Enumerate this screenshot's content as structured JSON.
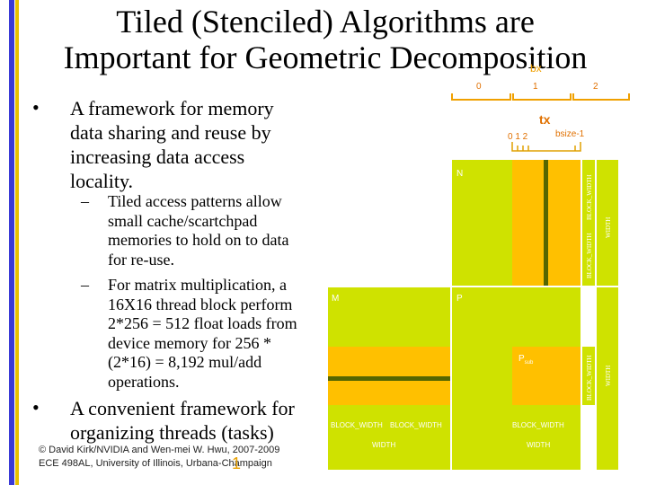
{
  "title": {
    "line1": "Tiled (Stenciled) Algorithms are",
    "line2": "Important for Geometric Decomposition"
  },
  "bullets": [
    {
      "marker": "•",
      "lines": [
        "A framework for memory",
        "data sharing and reuse by",
        "increasing data access",
        "locality."
      ]
    },
    {
      "marker": "•",
      "lines": [
        "A convenient framework for",
        "organizing threads (tasks)"
      ]
    }
  ],
  "subbullets": [
    {
      "marker": "–",
      "lines": [
        "Tiled access patterns allow",
        "small cache/scartchpad",
        "memories to hold on to data",
        "for re-use."
      ]
    },
    {
      "marker": "–",
      "lines": [
        "For matrix multiplication, a",
        "16X16 thread block perform",
        "2*256 = 512 float loads from",
        "device memory for 256 *",
        "(2*16) = 8,192 mul/add",
        "operations."
      ]
    }
  ],
  "footer": {
    "line1": "© David Kirk/NVIDIA and Wen-mei W. Hwu, 2007-2009",
    "line2": "ECE 498AL, University of Illinois, Urbana-Champaign"
  },
  "page_number": "1",
  "diagram": {
    "bx_label": "bx",
    "bx_ticks": [
      "0",
      "1",
      "2"
    ],
    "tx_label": "tx",
    "tx_ticks": "0 1 2",
    "tx_end": "bsize-1",
    "matrix_n": "N",
    "matrix_m": "M",
    "matrix_p": "P",
    "psub": "P",
    "psub_subscript": "sub",
    "block_width": "BLOCK_WIDTH",
    "width": "WIDTH",
    "colors": {
      "matrix": "#cfe200",
      "tile": "#ffc000",
      "dark": "#556600",
      "bracket": "#f0a000"
    }
  }
}
